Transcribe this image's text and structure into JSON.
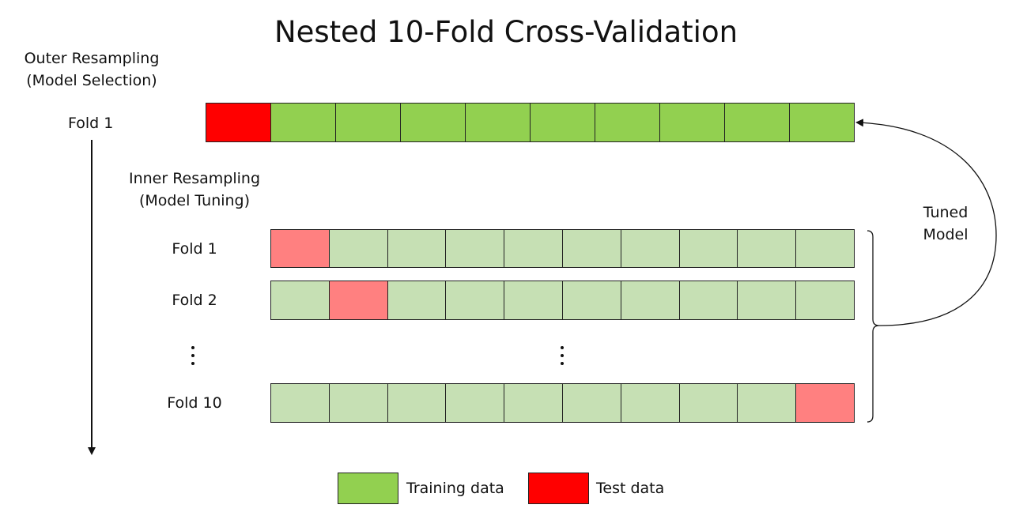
{
  "title": "Nested 10-Fold Cross-Validation",
  "outer": {
    "label_line1": "Outer Resampling",
    "label_line2": "(Model Selection)",
    "fold_label": "Fold 1",
    "test_index": 0,
    "num_cells": 10
  },
  "inner": {
    "label_line1": "Inner Resampling",
    "label_line2": "(Model Tuning)",
    "folds": [
      {
        "label": "Fold 1",
        "test_index": 0
      },
      {
        "label": "Fold 2",
        "test_index": 1
      },
      {
        "label": "Fold 10",
        "test_index": 9
      }
    ],
    "num_cells": 10,
    "ellipsis": "⋮"
  },
  "tuned_model": {
    "line1": "Tuned",
    "line2": "Model"
  },
  "legend": {
    "training_label": "Training data",
    "test_label": "Test data"
  },
  "colors": {
    "training": "#92d050",
    "test": "#ff0000",
    "inner_training": "#c6e0b4",
    "inner_test": "#ff8080"
  }
}
